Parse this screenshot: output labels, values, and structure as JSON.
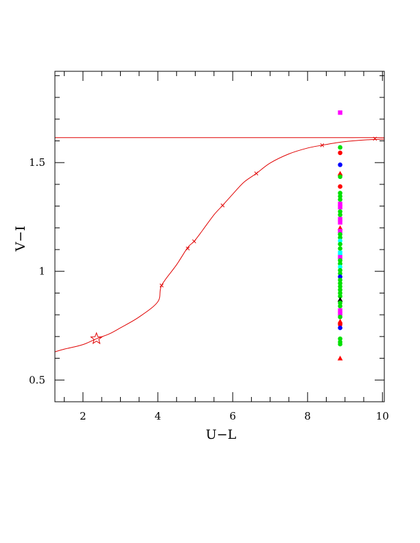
{
  "chart_data": {
    "type": "scatter",
    "title": "",
    "xlabel": "U−L",
    "ylabel": "V−I",
    "xlim": [
      1.25,
      10.05
    ],
    "ylim": [
      0.4,
      1.92
    ],
    "grid": false,
    "x_ticks": [
      {
        "value": 2,
        "label": "2"
      },
      {
        "value": 4,
        "label": "4"
      },
      {
        "value": 6,
        "label": "6"
      },
      {
        "value": 8,
        "label": "8"
      },
      {
        "value": 10,
        "label": "10"
      }
    ],
    "y_ticks": [
      {
        "value": 0.5,
        "label": "0.5"
      },
      {
        "value": 1,
        "label": "1"
      },
      {
        "value": 1.5,
        "label": "1.5"
      }
    ],
    "colors": {
      "curve": "#e00000",
      "red": "#ff0000",
      "green": "#00e000",
      "blue": "#0000ff",
      "magenta": "#ff00ff",
      "cyan": "#00ffff",
      "black": "#000000"
    },
    "asymptote": {
      "y": 1.615
    },
    "curve_points": [
      [
        1.25,
        0.63
      ],
      [
        1.5,
        0.642
      ],
      [
        2.0,
        0.663
      ],
      [
        2.36,
        0.69
      ],
      [
        2.7,
        0.712
      ],
      [
        3.0,
        0.74
      ],
      [
        3.5,
        0.79
      ],
      [
        4.0,
        0.86
      ],
      [
        4.1,
        0.935
      ],
      [
        4.5,
        1.03
      ],
      [
        4.8,
        1.11
      ],
      [
        4.97,
        1.138
      ],
      [
        5.2,
        1.19
      ],
      [
        5.5,
        1.26
      ],
      [
        5.73,
        1.303
      ],
      [
        6.0,
        1.355
      ],
      [
        6.3,
        1.41
      ],
      [
        6.63,
        1.45
      ],
      [
        7.0,
        1.498
      ],
      [
        7.5,
        1.54
      ],
      [
        8.0,
        1.567
      ],
      [
        8.39,
        1.58
      ],
      [
        8.8,
        1.592
      ],
      [
        9.2,
        1.6
      ],
      [
        9.6,
        1.605
      ],
      [
        10.05,
        1.608
      ]
    ],
    "curve_markers": [
      [
        4.1,
        0.935
      ],
      [
        4.8,
        1.105
      ],
      [
        4.97,
        1.138
      ],
      [
        5.73,
        1.303
      ],
      [
        6.63,
        1.45
      ],
      [
        8.39,
        1.58
      ],
      [
        9.8,
        1.61
      ]
    ],
    "star_point": [
      2.36,
      0.69
    ],
    "scatter_x": 8.87,
    "points": [
      {
        "y": 1.73,
        "color": "magenta",
        "marker": "square"
      },
      {
        "y": 1.57,
        "color": "green",
        "marker": "circle"
      },
      {
        "y": 1.545,
        "color": "red",
        "marker": "circle"
      },
      {
        "y": 1.49,
        "color": "blue",
        "marker": "circle"
      },
      {
        "y": 1.45,
        "color": "red",
        "marker": "triangle"
      },
      {
        "y": 1.435,
        "color": "green",
        "marker": "circle"
      },
      {
        "y": 1.39,
        "color": "red",
        "marker": "circle"
      },
      {
        "y": 1.36,
        "color": "green",
        "marker": "circle"
      },
      {
        "y": 1.345,
        "color": "green",
        "marker": "circle"
      },
      {
        "y": 1.33,
        "color": "green",
        "marker": "circle"
      },
      {
        "y": 1.31,
        "color": "magenta",
        "marker": "square"
      },
      {
        "y": 1.295,
        "color": "magenta",
        "marker": "square"
      },
      {
        "y": 1.275,
        "color": "green",
        "marker": "circle"
      },
      {
        "y": 1.26,
        "color": "green",
        "marker": "circle"
      },
      {
        "y": 1.24,
        "color": "magenta",
        "marker": "square"
      },
      {
        "y": 1.225,
        "color": "magenta",
        "marker": "square"
      },
      {
        "y": 1.2,
        "color": "red",
        "marker": "triangle"
      },
      {
        "y": 1.185,
        "color": "magenta",
        "marker": "square"
      },
      {
        "y": 1.17,
        "color": "green",
        "marker": "circle"
      },
      {
        "y": 1.155,
        "color": "green",
        "marker": "circle"
      },
      {
        "y": 1.14,
        "color": "cyan",
        "marker": "circle"
      },
      {
        "y": 1.125,
        "color": "green",
        "marker": "circle"
      },
      {
        "y": 1.105,
        "color": "green",
        "marker": "circle"
      },
      {
        "y": 1.085,
        "color": "cyan",
        "marker": "square"
      },
      {
        "y": 1.065,
        "color": "magenta",
        "marker": "square"
      },
      {
        "y": 1.05,
        "color": "green",
        "marker": "circle"
      },
      {
        "y": 1.035,
        "color": "green",
        "marker": "circle"
      },
      {
        "y": 1.02,
        "color": "cyan",
        "marker": "circle"
      },
      {
        "y": 1.005,
        "color": "green",
        "marker": "circle"
      },
      {
        "y": 0.99,
        "color": "green",
        "marker": "circle"
      },
      {
        "y": 0.975,
        "color": "blue",
        "marker": "circle"
      },
      {
        "y": 0.96,
        "color": "green",
        "marker": "circle"
      },
      {
        "y": 0.945,
        "color": "green",
        "marker": "circle"
      },
      {
        "y": 0.93,
        "color": "green",
        "marker": "circle"
      },
      {
        "y": 0.915,
        "color": "green",
        "marker": "circle"
      },
      {
        "y": 0.9,
        "color": "green",
        "marker": "circle"
      },
      {
        "y": 0.885,
        "color": "green",
        "marker": "circle"
      },
      {
        "y": 0.87,
        "color": "black",
        "marker": "triangle"
      },
      {
        "y": 0.855,
        "color": "green",
        "marker": "circle"
      },
      {
        "y": 0.84,
        "color": "green",
        "marker": "circle"
      },
      {
        "y": 0.82,
        "color": "magenta",
        "marker": "square"
      },
      {
        "y": 0.805,
        "color": "magenta",
        "marker": "square"
      },
      {
        "y": 0.79,
        "color": "green",
        "marker": "circle"
      },
      {
        "y": 0.77,
        "color": "red",
        "marker": "triangle"
      },
      {
        "y": 0.755,
        "color": "red",
        "marker": "circle"
      },
      {
        "y": 0.74,
        "color": "blue",
        "marker": "circle"
      },
      {
        "y": 0.69,
        "color": "green",
        "marker": "circle"
      },
      {
        "y": 0.675,
        "color": "green",
        "marker": "circle"
      },
      {
        "y": 0.665,
        "color": "green",
        "marker": "circle"
      },
      {
        "y": 0.6,
        "color": "red",
        "marker": "triangle"
      }
    ]
  }
}
